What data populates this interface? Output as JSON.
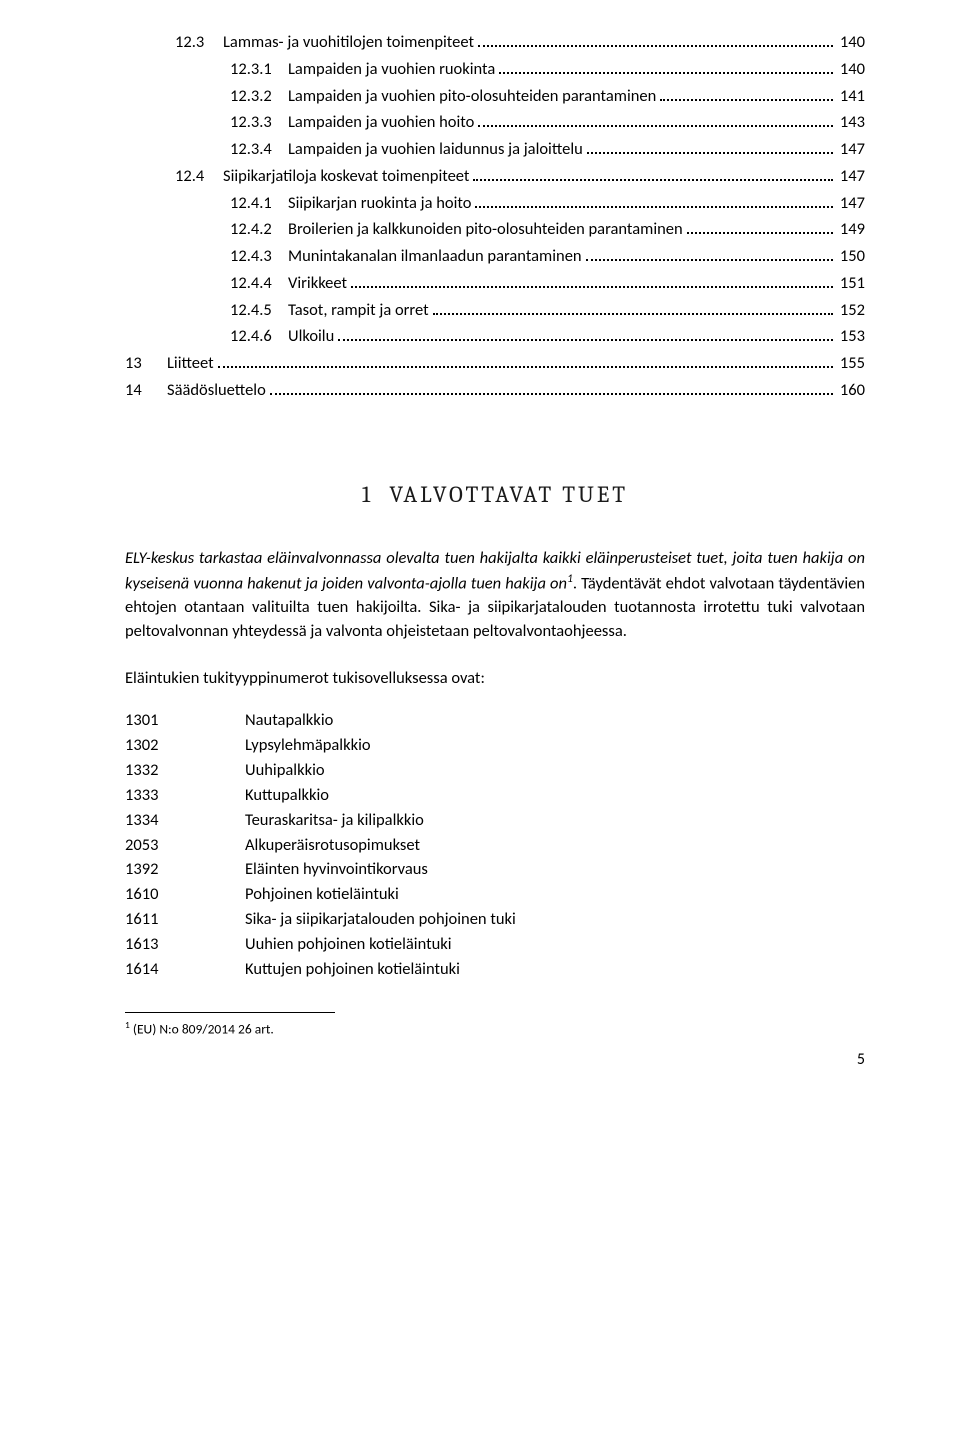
{
  "toc": [
    {
      "indent": 2,
      "num": "12.3",
      "text": "Lammas- ja vuohitilojen toimenpiteet",
      "page": "140"
    },
    {
      "indent": 3,
      "num": "12.3.1",
      "text": "Lampaiden ja vuohien ruokinta",
      "page": "140"
    },
    {
      "indent": 3,
      "num": "12.3.2",
      "text": "Lampaiden ja vuohien pito-olosuhteiden parantaminen",
      "page": "141"
    },
    {
      "indent": 3,
      "num": "12.3.3",
      "text": "Lampaiden ja vuohien hoito",
      "page": "143"
    },
    {
      "indent": 3,
      "num": "12.3.4",
      "text": "Lampaiden ja vuohien laidunnus ja jaloittelu",
      "page": "147"
    },
    {
      "indent": 2,
      "num": "12.4",
      "text": "Siipikarjatiloja koskevat toimenpiteet",
      "page": "147"
    },
    {
      "indent": 3,
      "num": "12.4.1",
      "text": "Siipikarjan ruokinta ja hoito",
      "page": "147"
    },
    {
      "indent": 3,
      "num": "12.4.2",
      "text": "Broilerien ja kalkkunoiden pito-olosuhteiden parantaminen",
      "page": "149"
    },
    {
      "indent": 3,
      "num": "12.4.3",
      "text": "Munintakanalan ilmanlaadun parantaminen",
      "page": "150"
    },
    {
      "indent": 3,
      "num": "12.4.4",
      "text": "Virikkeet",
      "page": "151"
    },
    {
      "indent": 3,
      "num": "12.4.5",
      "text": "Tasot, rampit ja orret",
      "page": "152"
    },
    {
      "indent": 3,
      "num": "12.4.6",
      "text": "Ulkoilu",
      "page": "153"
    },
    {
      "indent": 1,
      "num": "13",
      "text": "Liitteet",
      "page": "155"
    },
    {
      "indent": 1,
      "num": "14",
      "text": "Säädösluettelo",
      "page": "160"
    }
  ],
  "heading": {
    "num": "1",
    "title": "VALVOTTAVAT TUET"
  },
  "para1_italic": "ELY-keskus tarkastaa eläinvalvonnassa olevalta tuen hakijalta kaikki eläinperusteiset tuet, joita tuen hakija on kyseisenä vuonna hakenut ja joiden valvonta-ajolla tuen hakija on",
  "para1_rest": ". Täydentävät ehdot valvotaan täydentävien ehtojen otantaan valituilta tuen hakijoilta. Sika- ja siipikarjatalouden tuotannosta irrotettu tuki valvotaan peltovalvonnan yhteydessä ja valvonta ohjeistetaan peltovalvontaohjeessa.",
  "intro_line": "Eläintukien tukityyppinumerot tukisovelluksessa ovat:",
  "codes": [
    {
      "num": "1301",
      "label": "Nautapalkkio"
    },
    {
      "num": "1302",
      "label": "Lypsylehmäpalkkio"
    },
    {
      "num": "1332",
      "label": "Uuhipalkkio"
    },
    {
      "num": "1333",
      "label": "Kuttupalkkio"
    },
    {
      "num": "1334",
      "label": "Teuraskaritsa- ja kilipalkkio"
    },
    {
      "num": "2053",
      "label": "Alkuperäisrotusopimukset"
    },
    {
      "num": "1392",
      "label": "Eläinten hyvinvointikorvaus"
    },
    {
      "num": "1610",
      "label": "Pohjoinen kotieläintuki"
    },
    {
      "num": "1611",
      "label": "Sika- ja siipikarjatalouden pohjoinen tuki"
    },
    {
      "num": "1613",
      "label": "Uuhien pohjoinen kotieläintuki"
    },
    {
      "num": "1614",
      "label": "Kuttujen pohjoinen kotieläintuki"
    }
  ],
  "footnote_marker": "1",
  "footnote_text": " (EU) N:o 809/2014 26 art.",
  "page_number": "5"
}
